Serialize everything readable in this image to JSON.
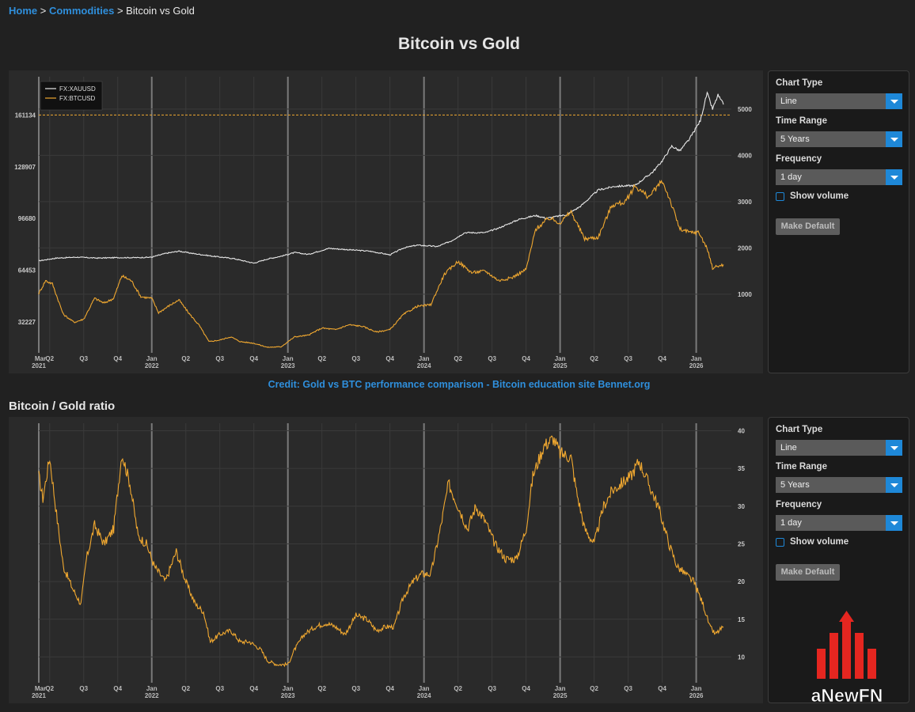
{
  "breadcrumb": {
    "home": "Home",
    "commodities": "Commodities",
    "current": "Bitcoin vs Gold"
  },
  "page_title": "Bitcoin vs Gold",
  "credit": "Credit: Gold vs BTC performance comparison - Bitcoin education site Bennet.org",
  "section2_title": "Bitcoin / Gold ratio",
  "logo_text": "aNewFN",
  "controls": {
    "chart_type_label": "Chart Type",
    "chart_type_value": "Line",
    "time_range_label": "Time Range",
    "time_range_value": "5 Years",
    "frequency_label": "Frequency",
    "frequency_value": "1 day",
    "show_volume_label": "Show volume",
    "make_default_label": "Make Default"
  },
  "colors": {
    "btc": "#f0a830",
    "gold": "#e8e8e8",
    "accent": "#1e88d8",
    "background": "#2a2a2a"
  },
  "chart_data": [
    {
      "type": "line",
      "x_tick_labels": [
        {
          "t": 2021.17,
          "line1": "Mar",
          "line2": "2021"
        },
        {
          "t": 2021.25,
          "line1": "Q2",
          "line2": ""
        },
        {
          "t": 2021.5,
          "line1": "Q3",
          "line2": ""
        },
        {
          "t": 2021.75,
          "line1": "Q4",
          "line2": ""
        },
        {
          "t": 2022.0,
          "line1": "Jan",
          "line2": "2022"
        },
        {
          "t": 2022.25,
          "line1": "Q2",
          "line2": ""
        },
        {
          "t": 2022.5,
          "line1": "Q3",
          "line2": ""
        },
        {
          "t": 2022.75,
          "line1": "Q4",
          "line2": ""
        },
        {
          "t": 2023.0,
          "line1": "Jan",
          "line2": "2023"
        },
        {
          "t": 2023.25,
          "line1": "Q2",
          "line2": ""
        },
        {
          "t": 2023.5,
          "line1": "Q3",
          "line2": ""
        },
        {
          "t": 2023.75,
          "line1": "Q4",
          "line2": ""
        },
        {
          "t": 2024.0,
          "line1": "Jan",
          "line2": "2024"
        },
        {
          "t": 2024.25,
          "line1": "Q2",
          "line2": ""
        },
        {
          "t": 2024.5,
          "line1": "Q3",
          "line2": ""
        },
        {
          "t": 2024.75,
          "line1": "Q4",
          "line2": ""
        },
        {
          "t": 2025.0,
          "line1": "Jan",
          "line2": "2025"
        },
        {
          "t": 2025.25,
          "line1": "Q2",
          "line2": ""
        },
        {
          "t": 2025.5,
          "line1": "Q3",
          "line2": ""
        },
        {
          "t": 2025.75,
          "line1": "Q4",
          "line2": ""
        },
        {
          "t": 2026.0,
          "line1": "Jan",
          "line2": "2026"
        }
      ],
      "xlim": [
        2021.17,
        2026.2
      ],
      "y_left_ticks": [
        32227,
        64453,
        96680,
        128907,
        161134
      ],
      "y_left_lim": [
        15000,
        185000
      ],
      "y_right_ticks": [
        1000,
        2000,
        3000,
        4000,
        5000
      ],
      "y_right_lim": [
        -200,
        5700
      ],
      "reference_line": {
        "axis": "left",
        "value": 161134
      },
      "legend": {
        "placement": "top-left"
      },
      "series": [
        {
          "name": "FX:XAUUSD",
          "axis": "right",
          "color": "#e8e8e8",
          "points": [
            [
              2021.17,
              1720
            ],
            [
              2021.3,
              1780
            ],
            [
              2021.45,
              1800
            ],
            [
              2021.6,
              1780
            ],
            [
              2021.75,
              1790
            ],
            [
              2021.9,
              1790
            ],
            [
              2022.0,
              1800
            ],
            [
              2022.1,
              1880
            ],
            [
              2022.2,
              1930
            ],
            [
              2022.3,
              1880
            ],
            [
              2022.45,
              1820
            ],
            [
              2022.6,
              1770
            ],
            [
              2022.75,
              1670
            ],
            [
              2022.85,
              1760
            ],
            [
              2022.95,
              1820
            ],
            [
              2023.05,
              1900
            ],
            [
              2023.15,
              1860
            ],
            [
              2023.3,
              1990
            ],
            [
              2023.45,
              1960
            ],
            [
              2023.6,
              1930
            ],
            [
              2023.75,
              1850
            ],
            [
              2023.85,
              2000
            ],
            [
              2023.95,
              2060
            ],
            [
              2024.1,
              2030
            ],
            [
              2024.2,
              2150
            ],
            [
              2024.3,
              2330
            ],
            [
              2024.45,
              2330
            ],
            [
              2024.55,
              2430
            ],
            [
              2024.7,
              2620
            ],
            [
              2024.82,
              2700
            ],
            [
              2024.9,
              2640
            ],
            [
              2025.05,
              2720
            ],
            [
              2025.15,
              2900
            ],
            [
              2025.28,
              3250
            ],
            [
              2025.4,
              3330
            ],
            [
              2025.55,
              3350
            ],
            [
              2025.68,
              3640
            ],
            [
              2025.75,
              3880
            ],
            [
              2025.82,
              4200
            ],
            [
              2025.88,
              4100
            ],
            [
              2025.95,
              4350
            ],
            [
              2026.03,
              4750
            ],
            [
              2026.08,
              5350
            ],
            [
              2026.12,
              5000
            ],
            [
              2026.16,
              5300
            ],
            [
              2026.2,
              5100
            ]
          ]
        },
        {
          "name": "FX:BTCUSD",
          "axis": "left",
          "color": "#f0a830",
          "points": [
            [
              2021.17,
              50000
            ],
            [
              2021.22,
              58000
            ],
            [
              2021.27,
              56000
            ],
            [
              2021.35,
              37000
            ],
            [
              2021.43,
              32000
            ],
            [
              2021.5,
              34000
            ],
            [
              2021.58,
              47000
            ],
            [
              2021.65,
              44000
            ],
            [
              2021.72,
              47000
            ],
            [
              2021.78,
              61000
            ],
            [
              2021.85,
              58000
            ],
            [
              2021.92,
              48000
            ],
            [
              2022.0,
              47000
            ],
            [
              2022.05,
              38000
            ],
            [
              2022.12,
              42000
            ],
            [
              2022.2,
              46000
            ],
            [
              2022.27,
              38000
            ],
            [
              2022.35,
              30000
            ],
            [
              2022.42,
              20000
            ],
            [
              2022.5,
              21000
            ],
            [
              2022.58,
              23000
            ],
            [
              2022.65,
              20000
            ],
            [
              2022.75,
              19000
            ],
            [
              2022.85,
              16500
            ],
            [
              2022.95,
              16800
            ],
            [
              2023.05,
              23000
            ],
            [
              2023.15,
              24000
            ],
            [
              2023.25,
              28500
            ],
            [
              2023.35,
              27500
            ],
            [
              2023.45,
              30500
            ],
            [
              2023.55,
              29500
            ],
            [
              2023.65,
              26000
            ],
            [
              2023.75,
              27500
            ],
            [
              2023.85,
              37000
            ],
            [
              2023.95,
              42000
            ],
            [
              2024.05,
              43000
            ],
            [
              2024.15,
              62000
            ],
            [
              2024.25,
              70000
            ],
            [
              2024.35,
              63000
            ],
            [
              2024.45,
              64000
            ],
            [
              2024.55,
              58000
            ],
            [
              2024.65,
              60000
            ],
            [
              2024.75,
              65000
            ],
            [
              2024.82,
              90000
            ],
            [
              2024.92,
              97000
            ],
            [
              2025.0,
              94000
            ],
            [
              2025.08,
              101000
            ],
            [
              2025.18,
              84000
            ],
            [
              2025.28,
              85000
            ],
            [
              2025.38,
              105000
            ],
            [
              2025.48,
              107000
            ],
            [
              2025.55,
              117000
            ],
            [
              2025.65,
              110000
            ],
            [
              2025.75,
              120000
            ],
            [
              2025.8,
              110000
            ],
            [
              2025.88,
              90000
            ],
            [
              2025.95,
              88000
            ],
            [
              2026.02,
              88000
            ],
            [
              2026.08,
              78000
            ],
            [
              2026.12,
              66000
            ],
            [
              2026.2,
              68000
            ]
          ]
        }
      ]
    },
    {
      "type": "line",
      "x_tick_labels": [
        {
          "t": 2021.17,
          "line1": "Mar",
          "line2": "2021"
        },
        {
          "t": 2021.25,
          "line1": "Q2",
          "line2": ""
        },
        {
          "t": 2021.5,
          "line1": "Q3",
          "line2": ""
        },
        {
          "t": 2021.75,
          "line1": "Q4",
          "line2": ""
        },
        {
          "t": 2022.0,
          "line1": "Jan",
          "line2": "2022"
        },
        {
          "t": 2022.25,
          "line1": "Q2",
          "line2": ""
        },
        {
          "t": 2022.5,
          "line1": "Q3",
          "line2": ""
        },
        {
          "t": 2022.75,
          "line1": "Q4",
          "line2": ""
        },
        {
          "t": 2023.0,
          "line1": "Jan",
          "line2": "2023"
        },
        {
          "t": 2023.25,
          "line1": "Q2",
          "line2": ""
        },
        {
          "t": 2023.5,
          "line1": "Q3",
          "line2": ""
        },
        {
          "t": 2023.75,
          "line1": "Q4",
          "line2": ""
        },
        {
          "t": 2024.0,
          "line1": "Jan",
          "line2": "2024"
        },
        {
          "t": 2024.25,
          "line1": "Q2",
          "line2": ""
        },
        {
          "t": 2024.5,
          "line1": "Q3",
          "line2": ""
        },
        {
          "t": 2024.75,
          "line1": "Q4",
          "line2": ""
        },
        {
          "t": 2025.0,
          "line1": "Jan",
          "line2": "2025"
        },
        {
          "t": 2025.25,
          "line1": "Q2",
          "line2": ""
        },
        {
          "t": 2025.5,
          "line1": "Q3",
          "line2": ""
        },
        {
          "t": 2025.75,
          "line1": "Q4",
          "line2": ""
        },
        {
          "t": 2026.0,
          "line1": "Jan",
          "line2": "2026"
        }
      ],
      "xlim": [
        2021.17,
        2026.2
      ],
      "y_right_ticks": [
        10,
        15,
        20,
        25,
        30,
        35,
        40
      ],
      "y_right_lim": [
        7,
        41
      ],
      "series": [
        {
          "name": "",
          "color": "#f0a830",
          "points": [
            [
              2021.17,
              34
            ],
            [
              2021.2,
              31
            ],
            [
              2021.25,
              36.5
            ],
            [
              2021.3,
              29
            ],
            [
              2021.35,
              22
            ],
            [
              2021.42,
              19
            ],
            [
              2021.48,
              17
            ],
            [
              2021.52,
              23
            ],
            [
              2021.58,
              27.5
            ],
            [
              2021.65,
              25
            ],
            [
              2021.72,
              27
            ],
            [
              2021.78,
              37
            ],
            [
              2021.84,
              33
            ],
            [
              2021.9,
              26
            ],
            [
              2021.96,
              25
            ],
            [
              2022.02,
              22
            ],
            [
              2022.1,
              20
            ],
            [
              2022.18,
              24
            ],
            [
              2022.25,
              20
            ],
            [
              2022.32,
              17
            ],
            [
              2022.38,
              16
            ],
            [
              2022.43,
              12
            ],
            [
              2022.5,
              13
            ],
            [
              2022.58,
              13.5
            ],
            [
              2022.65,
              12
            ],
            [
              2022.72,
              12
            ],
            [
              2022.8,
              11
            ],
            [
              2022.85,
              9.5
            ],
            [
              2022.92,
              9
            ],
            [
              2023.0,
              9
            ],
            [
              2023.05,
              11
            ],
            [
              2023.12,
              13
            ],
            [
              2023.2,
              14
            ],
            [
              2023.28,
              14.5
            ],
            [
              2023.35,
              14
            ],
            [
              2023.42,
              13
            ],
            [
              2023.5,
              15.5
            ],
            [
              2023.58,
              15
            ],
            [
              2023.65,
              13.5
            ],
            [
              2023.72,
              14
            ],
            [
              2023.78,
              14
            ],
            [
              2023.85,
              18
            ],
            [
              2023.92,
              20
            ],
            [
              2023.98,
              21
            ],
            [
              2024.05,
              21
            ],
            [
              2024.12,
              27
            ],
            [
              2024.18,
              33
            ],
            [
              2024.25,
              30
            ],
            [
              2024.32,
              27
            ],
            [
              2024.38,
              30
            ],
            [
              2024.45,
              28
            ],
            [
              2024.52,
              25
            ],
            [
              2024.6,
              23
            ],
            [
              2024.68,
              23
            ],
            [
              2024.75,
              27
            ],
            [
              2024.8,
              34
            ],
            [
              2024.88,
              38
            ],
            [
              2024.95,
              39
            ],
            [
              2025.0,
              37
            ],
            [
              2025.08,
              36.5
            ],
            [
              2025.12,
              32
            ],
            [
              2025.18,
              27
            ],
            [
              2025.25,
              25
            ],
            [
              2025.32,
              30
            ],
            [
              2025.38,
              32
            ],
            [
              2025.45,
              33
            ],
            [
              2025.52,
              34
            ],
            [
              2025.58,
              36
            ],
            [
              2025.65,
              33
            ],
            [
              2025.72,
              30
            ],
            [
              2025.8,
              25
            ],
            [
              2025.86,
              22
            ],
            [
              2025.92,
              21
            ],
            [
              2025.98,
              20
            ],
            [
              2026.05,
              17
            ],
            [
              2026.1,
              14
            ],
            [
              2026.14,
              13
            ],
            [
              2026.2,
              14
            ]
          ]
        }
      ]
    }
  ]
}
